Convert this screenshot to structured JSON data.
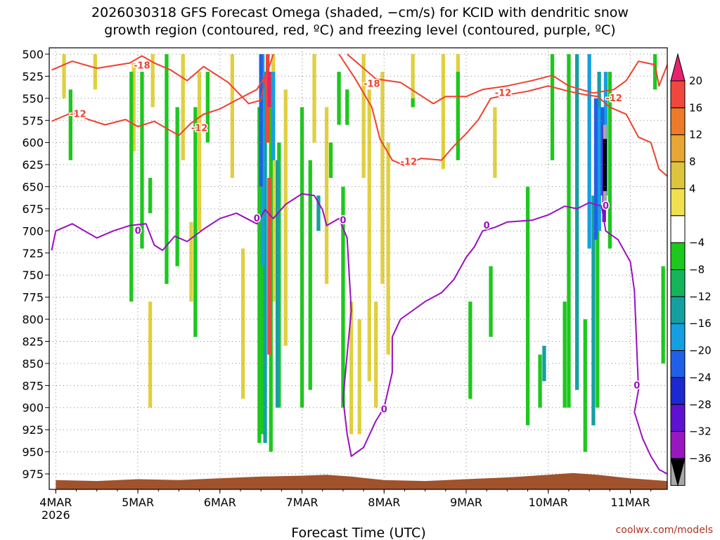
{
  "chart_data": {
    "type": "heatmap",
    "title_line1": "2026030318 GFS Forecast Omega (shaded, −cm/s) for KCID with dendritic snow",
    "title_line2": "growth region (contoured, red, ºC) and freezing level (contoured, purple, ºC)",
    "xlabel": "Forecast Time (UTC)",
    "credit": "coolwx.com/models",
    "y_ticks": [
      500,
      525,
      550,
      575,
      600,
      625,
      650,
      675,
      700,
      725,
      750,
      775,
      800,
      825,
      850,
      875,
      900,
      925,
      950,
      975
    ],
    "y_tick_labels": [
      "500",
      "525",
      "550",
      "575",
      "600",
      "625",
      "650",
      "675",
      "700",
      "725",
      "750",
      "775",
      "800",
      "825",
      "850",
      "875",
      "900",
      "925",
      "950",
      "975"
    ],
    "x_ticks": [
      {
        "t": 0,
        "label": "4MAR",
        "sublabel": "2026"
      },
      {
        "t": 1,
        "label": "5MAR"
      },
      {
        "t": 2,
        "label": "6MAR"
      },
      {
        "t": 3,
        "label": "7MAR"
      },
      {
        "t": 4,
        "label": "8MAR"
      },
      {
        "t": 5,
        "label": "9MAR"
      },
      {
        "t": 6,
        "label": "10MAR"
      },
      {
        "t": 7,
        "label": "11MAR"
      }
    ],
    "xlim_days": [
      -0.08,
      7.45
    ],
    "colorbar": {
      "labels": [
        "20",
        "16",
        "12",
        "8",
        "4",
        "−4",
        "−8",
        "−12",
        "−16",
        "−20",
        "−24",
        "−28",
        "−32",
        "−36"
      ],
      "colors": [
        "#e8226e",
        "#f0483c",
        "#ee7a2a",
        "#e8a634",
        "#dcc43c",
        "#f0e050",
        "#ffffff",
        "#1cc81c",
        "#14b45a",
        "#14a0a0",
        "#14a0e0",
        "#2060e8",
        "#1c28d0",
        "#6010d0",
        "#9818c0",
        "#a8a8a8",
        "#000000"
      ]
    },
    "omega_series": [
      {
        "name": "weak ascent",
        "color": "#e0d040",
        "cells": [
          [
            0.1,
            500,
            550
          ],
          [
            0.48,
            500,
            540
          ],
          [
            0.95,
            510,
            610
          ],
          [
            1.18,
            500,
            560
          ],
          [
            1.55,
            500,
            620
          ],
          [
            1.75,
            520,
            700
          ],
          [
            2.15,
            500,
            640
          ],
          [
            2.28,
            720,
            890
          ],
          [
            1.15,
            780,
            900
          ],
          [
            1.65,
            690,
            780
          ],
          [
            2.65,
            500,
            780
          ],
          [
            2.8,
            540,
            830
          ],
          [
            3.15,
            500,
            600
          ],
          [
            3.3,
            560,
            760
          ],
          [
            3.75,
            500,
            640
          ],
          [
            3.82,
            540,
            870
          ],
          [
            3.98,
            520,
            760
          ],
          [
            4.05,
            600,
            840
          ],
          [
            4.35,
            500,
            560
          ],
          [
            4.72,
            500,
            630
          ],
          [
            4.9,
            500,
            620
          ],
          [
            5.35,
            560,
            640
          ],
          [
            3.6,
            780,
            930
          ],
          [
            3.7,
            800,
            930
          ],
          [
            3.9,
            780,
            900
          ]
        ]
      },
      {
        "name": "ascent",
        "color": "#1cc81c",
        "cells": [
          [
            0.18,
            540,
            620
          ],
          [
            0.92,
            520,
            780
          ],
          [
            1.05,
            520,
            720
          ],
          [
            1.35,
            500,
            760
          ],
          [
            1.48,
            560,
            740
          ],
          [
            1.7,
            560,
            820
          ],
          [
            1.85,
            520,
            600
          ],
          [
            2.48,
            560,
            940
          ],
          [
            2.52,
            600,
            930
          ],
          [
            2.62,
            520,
            950
          ],
          [
            2.72,
            600,
            900
          ],
          [
            3.0,
            560,
            900
          ],
          [
            3.1,
            620,
            880
          ],
          [
            3.35,
            600,
            640
          ],
          [
            3.45,
            520,
            580
          ],
          [
            3.5,
            650,
            900
          ],
          [
            4.9,
            520,
            620
          ],
          [
            4.35,
            550,
            560
          ],
          [
            5.05,
            780,
            890
          ],
          [
            5.3,
            740,
            820
          ],
          [
            5.75,
            650,
            920
          ],
          [
            5.9,
            840,
            900
          ],
          [
            6.05,
            500,
            620
          ],
          [
            6.2,
            780,
            900
          ],
          [
            6.25,
            500,
            900
          ],
          [
            6.45,
            800,
            950
          ],
          [
            6.6,
            680,
            900
          ],
          [
            6.75,
            520,
            720
          ],
          [
            7.3,
            500,
            540
          ],
          [
            7.4,
            740,
            850
          ],
          [
            1.15,
            640,
            680
          ],
          [
            3.55,
            540,
            580
          ]
        ]
      },
      {
        "name": "moderate ascent",
        "color": "#14a0a0",
        "cells": [
          [
            2.55,
            520,
            940
          ],
          [
            2.7,
            620,
            900
          ],
          [
            3.2,
            660,
            700
          ],
          [
            6.35,
            500,
            880
          ],
          [
            6.55,
            660,
            920
          ],
          [
            6.62,
            520,
            700
          ],
          [
            5.95,
            830,
            870
          ]
        ]
      },
      {
        "name": "strong ascent",
        "color": "#14a0e0",
        "cells": [
          [
            2.52,
            500,
            740
          ],
          [
            2.65,
            520,
            620
          ],
          [
            6.5,
            500,
            720
          ],
          [
            6.62,
            560,
            700
          ],
          [
            6.7,
            520,
            660
          ]
        ]
      },
      {
        "name": "stronger ascent",
        "color": "#2060e8",
        "cells": [
          [
            2.5,
            500,
            650
          ],
          [
            6.58,
            550,
            710
          ],
          [
            6.66,
            560,
            660
          ]
        ]
      },
      {
        "name": "intense ascent",
        "color": "#6010d0",
        "cells": [
          [
            6.68,
            580,
            690
          ]
        ]
      },
      {
        "name": "max ascent",
        "color": "#000000",
        "cells": [
          [
            6.69,
            590,
            660
          ]
        ]
      },
      {
        "name": "max ascent cap",
        "color": "#a8a8a8",
        "cells": [
          [
            6.69,
            580,
            596
          ],
          [
            6.69,
            655,
            670
          ]
        ]
      },
      {
        "name": "descent",
        "color": "#f0483c",
        "cells": [
          [
            2.58,
            500,
            600
          ],
          [
            2.6,
            640,
            840
          ]
        ]
      },
      {
        "name": "strong descent",
        "color": "#e8226e",
        "cells": [
          [
            2.6,
            520,
            560
          ]
        ]
      }
    ],
    "isotherm_minus18_a": {
      "color": "#f04030",
      "label": "-18",
      "points": [
        [
          -0.05,
          518
        ],
        [
          0.2,
          508
        ],
        [
          0.5,
          516
        ],
        [
          0.9,
          510
        ],
        [
          1.05,
          502
        ],
        [
          1.2,
          510
        ],
        [
          1.4,
          518
        ],
        [
          1.6,
          530
        ],
        [
          1.8,
          514
        ],
        [
          2.1,
          532
        ],
        [
          2.35,
          556
        ],
        [
          2.5,
          552
        ],
        [
          2.58,
          512
        ],
        [
          2.6,
          500
        ]
      ]
    },
    "isotherm_minus18_b": {
      "color": "#f04030",
      "label": "-18",
      "points": [
        [
          3.55,
          500
        ],
        [
          3.7,
          512
        ],
        [
          3.9,
          528
        ],
        [
          4.2,
          532
        ],
        [
          4.4,
          544
        ],
        [
          4.6,
          556
        ],
        [
          4.75,
          548
        ],
        [
          5.0,
          548
        ],
        [
          5.2,
          540
        ],
        [
          5.5,
          536
        ],
        [
          5.8,
          530
        ],
        [
          6.05,
          524
        ],
        [
          6.25,
          536
        ],
        [
          6.55,
          544
        ],
        [
          6.8,
          540
        ],
        [
          6.95,
          530
        ],
        [
          7.1,
          508
        ],
        [
          7.3,
          512
        ],
        [
          7.35,
          536
        ],
        [
          7.45,
          512
        ]
      ]
    },
    "isotherm_minus12": {
      "color": "#f04030",
      "label": "-12",
      "points": [
        [
          -0.05,
          576
        ],
        [
          0.2,
          566
        ],
        [
          0.4,
          574
        ],
        [
          0.6,
          580
        ],
        [
          0.85,
          574
        ],
        [
          1.0,
          582
        ],
        [
          1.2,
          576
        ],
        [
          1.35,
          584
        ],
        [
          1.5,
          592
        ],
        [
          1.65,
          578
        ],
        [
          1.8,
          568
        ],
        [
          2.0,
          562
        ],
        [
          2.2,
          552
        ],
        [
          2.45,
          540
        ],
        [
          2.58,
          520
        ],
        [
          2.65,
          500
        ]
      ]
    },
    "isotherm_minus12_b": {
      "color": "#f04030",
      "label": "-12",
      "points": [
        [
          3.45,
          500
        ],
        [
          3.65,
          528
        ],
        [
          3.85,
          560
        ],
        [
          3.95,
          596
        ],
        [
          4.1,
          620
        ],
        [
          4.25,
          626
        ],
        [
          4.45,
          618
        ],
        [
          4.7,
          620
        ],
        [
          4.85,
          604
        ],
        [
          5.0,
          590
        ],
        [
          5.15,
          574
        ],
        [
          5.3,
          550
        ],
        [
          5.5,
          546
        ],
        [
          5.75,
          542
        ],
        [
          6.0,
          536
        ],
        [
          6.25,
          542
        ],
        [
          6.45,
          546
        ],
        [
          6.6,
          548
        ],
        [
          6.75,
          560
        ],
        [
          6.95,
          568
        ],
        [
          7.1,
          594
        ],
        [
          7.25,
          600
        ],
        [
          7.35,
          630
        ],
        [
          7.45,
          638
        ]
      ]
    },
    "isotherm_freezing": {
      "color": "#9a10c0",
      "label": "0",
      "points": [
        [
          -0.05,
          722
        ],
        [
          0.0,
          700
        ],
        [
          0.2,
          692
        ],
        [
          0.35,
          700
        ],
        [
          0.5,
          708
        ],
        [
          0.7,
          700
        ],
        [
          0.9,
          694
        ],
        [
          1.1,
          692
        ],
        [
          1.2,
          716
        ],
        [
          1.3,
          722
        ],
        [
          1.45,
          706
        ],
        [
          1.6,
          712
        ],
        [
          1.8,
          698
        ],
        [
          2.0,
          686
        ],
        [
          2.2,
          680
        ],
        [
          2.45,
          692
        ],
        [
          2.55,
          676
        ],
        [
          2.65,
          686
        ],
        [
          2.8,
          670
        ],
        [
          3.0,
          658
        ],
        [
          3.15,
          660
        ],
        [
          3.25,
          676
        ],
        [
          3.3,
          694
        ],
        [
          3.45,
          686
        ],
        [
          3.55,
          708
        ],
        [
          3.6,
          790
        ],
        [
          3.55,
          840
        ],
        [
          3.5,
          890
        ],
        [
          3.55,
          930
        ],
        [
          3.6,
          955
        ],
        [
          3.75,
          945
        ],
        [
          3.9,
          915
        ],
        [
          4.0,
          900
        ],
        [
          4.1,
          860
        ],
        [
          4.1,
          820
        ],
        [
          4.2,
          800
        ],
        [
          4.35,
          790
        ],
        [
          4.5,
          780
        ],
        [
          4.7,
          770
        ],
        [
          4.85,
          755
        ],
        [
          5.0,
          730
        ],
        [
          5.1,
          718
        ],
        [
          5.2,
          700
        ],
        [
          5.35,
          696
        ],
        [
          5.5,
          690
        ],
        [
          5.8,
          688
        ],
        [
          6.0,
          682
        ],
        [
          6.2,
          672
        ],
        [
          6.35,
          675
        ],
        [
          6.5,
          668
        ],
        [
          6.65,
          672
        ],
        [
          6.7,
          700
        ],
        [
          6.85,
          710
        ],
        [
          7.0,
          735
        ],
        [
          7.05,
          768
        ],
        [
          7.1,
          880
        ],
        [
          7.05,
          905
        ],
        [
          7.15,
          935
        ],
        [
          7.25,
          955
        ],
        [
          7.35,
          970
        ],
        [
          7.45,
          975
        ]
      ]
    },
    "terrain_color": "#a0522d",
    "terrain_top_hpa": [
      [
        0,
        982
      ],
      [
        0.5,
        983
      ],
      [
        1,
        981
      ],
      [
        1.5,
        982
      ],
      [
        2,
        980
      ],
      [
        2.5,
        978
      ],
      [
        3,
        977
      ],
      [
        3.3,
        976
      ],
      [
        3.6,
        978
      ],
      [
        4,
        982
      ],
      [
        4.5,
        983
      ],
      [
        5,
        981
      ],
      [
        5.5,
        979
      ],
      [
        6,
        976
      ],
      [
        6.3,
        974
      ],
      [
        6.6,
        976
      ],
      [
        7,
        980
      ],
      [
        7.45,
        983
      ]
    ],
    "contour_labels": [
      {
        "t": 1.05,
        "p": 513,
        "text": "-18",
        "color": "#f04030"
      },
      {
        "t": 3.85,
        "p": 534,
        "text": "-18",
        "color": "#f04030"
      },
      {
        "t": 0.27,
        "p": 568,
        "text": "-12",
        "color": "#f04030"
      },
      {
        "t": 1.75,
        "p": 584,
        "text": "-12",
        "color": "#f04030"
      },
      {
        "t": 4.3,
        "p": 622,
        "text": "-12",
        "color": "#f04030"
      },
      {
        "t": 5.45,
        "p": 544,
        "text": "-12",
        "color": "#f04030"
      },
      {
        "t": 6.8,
        "p": 550,
        "text": "-12",
        "color": "#f04030"
      },
      {
        "t": 1.0,
        "p": 700,
        "text": "0",
        "color": "#9a10c0"
      },
      {
        "t": 2.45,
        "p": 686,
        "text": "0",
        "color": "#9a10c0"
      },
      {
        "t": 3.5,
        "p": 688,
        "text": "0",
        "color": "#9a10c0"
      },
      {
        "t": 4.0,
        "p": 902,
        "text": "0",
        "color": "#9a10c0"
      },
      {
        "t": 5.25,
        "p": 694,
        "text": "0",
        "color": "#9a10c0"
      },
      {
        "t": 6.7,
        "p": 672,
        "text": "0",
        "color": "#9a10c0"
      },
      {
        "t": 7.08,
        "p": 875,
        "text": "0",
        "color": "#9a10c0"
      }
    ]
  }
}
